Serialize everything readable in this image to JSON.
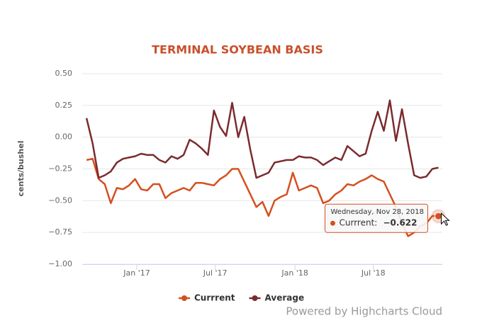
{
  "chart_data": {
    "type": "line",
    "title": "TERMINAL SOYBEAN BASIS",
    "y_label": "cents/bushel",
    "credit": "Powered by Highcharts Cloud",
    "x": [
      "2016-09-07",
      "2016-09-21",
      "2016-10-05",
      "2016-10-19",
      "2016-11-02",
      "2016-11-16",
      "2016-11-30",
      "2016-12-14",
      "2016-12-28",
      "2017-01-11",
      "2017-01-25",
      "2017-02-08",
      "2017-02-22",
      "2017-03-08",
      "2017-03-22",
      "2017-04-05",
      "2017-04-19",
      "2017-05-03",
      "2017-05-17",
      "2017-05-31",
      "2017-06-14",
      "2017-06-28",
      "2017-07-12",
      "2017-07-26",
      "2017-08-09",
      "2017-08-23",
      "2017-09-06",
      "2017-09-20",
      "2017-10-04",
      "2017-10-18",
      "2017-11-01",
      "2017-11-15",
      "2017-11-29",
      "2017-12-13",
      "2017-12-27",
      "2018-01-10",
      "2018-01-24",
      "2018-02-07",
      "2018-02-21",
      "2018-03-07",
      "2018-03-21",
      "2018-04-04",
      "2018-04-18",
      "2018-05-02",
      "2018-05-16",
      "2018-05-30",
      "2018-06-13",
      "2018-06-27",
      "2018-07-11",
      "2018-07-25",
      "2018-08-08",
      "2018-08-22",
      "2018-09-05",
      "2018-09-19",
      "2018-10-03",
      "2018-10-17",
      "2018-10-31",
      "2018-11-14",
      "2018-11-28"
    ],
    "series": [
      {
        "name": "Currrent",
        "color": "#d4501e",
        "values": [
          -0.18,
          -0.17,
          -0.33,
          -0.37,
          -0.52,
          -0.4,
          -0.41,
          -0.38,
          -0.33,
          -0.41,
          -0.42,
          -0.37,
          -0.37,
          -0.48,
          -0.44,
          -0.42,
          -0.4,
          -0.42,
          -0.36,
          -0.36,
          -0.37,
          -0.38,
          -0.33,
          -0.3,
          -0.25,
          -0.25,
          -0.35,
          -0.45,
          -0.55,
          -0.51,
          -0.62,
          -0.5,
          -0.47,
          -0.45,
          -0.28,
          -0.42,
          -0.4,
          -0.38,
          -0.4,
          -0.52,
          -0.5,
          -0.45,
          -0.42,
          -0.37,
          -0.38,
          -0.35,
          -0.33,
          -0.3,
          -0.33,
          -0.35,
          -0.45,
          -0.55,
          -0.68,
          -0.78,
          -0.75,
          -0.7,
          -0.68,
          -0.62,
          -0.622
        ]
      },
      {
        "name": "Average",
        "color": "#7b2b2e",
        "values": [
          0.15,
          -0.05,
          -0.32,
          -0.3,
          -0.27,
          -0.2,
          -0.17,
          -0.16,
          -0.15,
          -0.13,
          -0.14,
          -0.14,
          -0.18,
          -0.2,
          -0.15,
          -0.17,
          -0.14,
          -0.02,
          -0.05,
          -0.09,
          -0.14,
          0.21,
          0.08,
          0.01,
          0.27,
          0.0,
          0.16,
          -0.1,
          -0.32,
          -0.3,
          -0.28,
          -0.2,
          -0.19,
          -0.18,
          -0.18,
          -0.15,
          -0.16,
          -0.16,
          -0.18,
          -0.22,
          -0.19,
          -0.16,
          -0.18,
          -0.07,
          -0.11,
          -0.15,
          -0.13,
          0.05,
          0.2,
          0.05,
          0.29,
          -0.03,
          0.22,
          -0.05,
          -0.3,
          -0.32,
          -0.31,
          -0.25,
          -0.24
        ]
      }
    ],
    "xlim": [
      "2016-08-28",
      "2018-12-07"
    ],
    "xticks": [
      {
        "value": "2017-01-01",
        "label": "Jan '17"
      },
      {
        "value": "2017-07-01",
        "label": "Jul '17"
      },
      {
        "value": "2018-01-01",
        "label": "Jan '18"
      },
      {
        "value": "2018-07-01",
        "label": "Jul '18"
      }
    ],
    "ylim": [
      -1,
      0.5
    ],
    "yticks": [
      {
        "value": 0.5,
        "label": "0.50"
      },
      {
        "value": 0.25,
        "label": "0.25"
      },
      {
        "value": 0,
        "label": "0.00"
      },
      {
        "value": -0.25,
        "label": "−0.25"
      },
      {
        "value": -0.5,
        "label": "−0.50"
      },
      {
        "value": -0.75,
        "label": "−0.75"
      },
      {
        "value": -1,
        "label": "−1.00"
      }
    ],
    "grid": true,
    "tooltip": {
      "title": "Wednesday, Nov 28, 2018",
      "label": "Currrent:",
      "value_label": "−0.622"
    }
  }
}
